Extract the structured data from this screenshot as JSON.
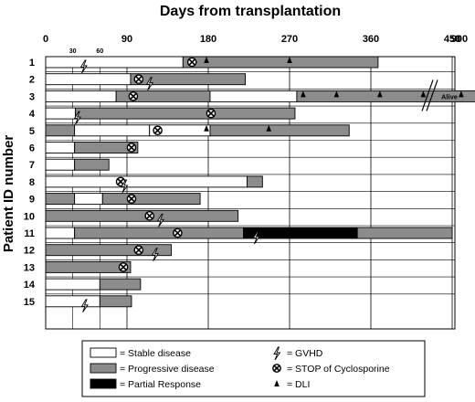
{
  "chart_data": {
    "type": "bar",
    "title": "Days from transplantation",
    "ylabel": "Patient ID number",
    "x_ticks_major": [
      {
        "value": 0,
        "label": "0"
      },
      {
        "value": 90,
        "label": "90"
      },
      {
        "value": 180,
        "label": "180"
      },
      {
        "value": 270,
        "label": "270"
      },
      {
        "value": 360,
        "label": "360"
      },
      {
        "value": 450,
        "label": "450"
      },
      {
        "value": 900,
        "label": "900"
      }
    ],
    "x_ticks_minor": [
      {
        "value": 30,
        "label": "30"
      },
      {
        "value": 60,
        "label": "60"
      }
    ],
    "axis_break": {
      "after_value": 540,
      "note": "Alive"
    },
    "grid": true,
    "patients": [
      {
        "id": "1",
        "segments": [
          {
            "s": 0,
            "e": 152,
            "state": "stable"
          },
          {
            "s": 152,
            "e": 368,
            "state": "progressive"
          }
        ],
        "gvhd": [
          42
        ],
        "stop": [
          162
        ],
        "dli": [
          178,
          270
        ]
      },
      {
        "id": "2",
        "segments": [
          {
            "s": 0,
            "e": 94,
            "state": "stable"
          },
          {
            "s": 94,
            "e": 221,
            "state": "progressive"
          }
        ],
        "gvhd": [
          115
        ],
        "stop": [
          103
        ],
        "dli": []
      },
      {
        "id": "3",
        "segments": [
          {
            "s": 0,
            "e": 78,
            "state": "stable"
          },
          {
            "s": 78,
            "e": 182,
            "state": "progressive"
          },
          {
            "s": 182,
            "e": 278,
            "state": "stable"
          },
          {
            "s": 278,
            "e": 540,
            "state": "progressive"
          }
        ],
        "gvhd": [],
        "stop": [
          97
        ],
        "dli": [
          285,
          322,
          370,
          418,
          460
        ],
        "alive": true
      },
      {
        "id": "4",
        "segments": [
          {
            "s": 0,
            "e": 33,
            "state": "stable"
          },
          {
            "s": 33,
            "e": 276,
            "state": "progressive"
          }
        ],
        "gvhd": [
          35
        ],
        "stop": [
          183
        ],
        "dli": []
      },
      {
        "id": "5",
        "segments": [
          {
            "s": 0,
            "e": 32,
            "state": "progressive"
          },
          {
            "s": 32,
            "e": 115,
            "state": "stable"
          },
          {
            "s": 115,
            "e": 182,
            "state": "stable"
          },
          {
            "s": 182,
            "e": 336,
            "state": "progressive"
          }
        ],
        "gvhd": [],
        "stop": [
          124
        ],
        "dli": [
          178,
          247
        ]
      },
      {
        "id": "6",
        "segments": [
          {
            "s": 0,
            "e": 32,
            "state": "stable"
          },
          {
            "s": 32,
            "e": 102,
            "state": "progressive"
          }
        ],
        "gvhd": [],
        "stop": [
          95
        ],
        "dli": []
      },
      {
        "id": "7",
        "segments": [
          {
            "s": 0,
            "e": 32,
            "state": "stable"
          },
          {
            "s": 32,
            "e": 70,
            "state": "progressive"
          }
        ],
        "gvhd": [],
        "stop": [],
        "dli": []
      },
      {
        "id": "8",
        "segments": [
          {
            "s": 0,
            "e": 223,
            "state": "stable"
          },
          {
            "s": 223,
            "e": 240,
            "state": "progressive"
          }
        ],
        "gvhd": [
          87
        ],
        "stop": [
          83
        ],
        "dli": []
      },
      {
        "id": "9",
        "segments": [
          {
            "s": 0,
            "e": 32,
            "state": "progressive"
          },
          {
            "s": 32,
            "e": 63,
            "state": "stable"
          },
          {
            "s": 63,
            "e": 171,
            "state": "progressive"
          }
        ],
        "gvhd": [],
        "stop": [
          95
        ],
        "dli": []
      },
      {
        "id": "10",
        "segments": [
          {
            "s": 0,
            "e": 213,
            "state": "progressive"
          }
        ],
        "gvhd": [
          127
        ],
        "stop": [
          115
        ],
        "dli": []
      },
      {
        "id": "11",
        "segments": [
          {
            "s": 0,
            "e": 32,
            "state": "stable"
          },
          {
            "s": 32,
            "e": 219,
            "state": "progressive"
          },
          {
            "s": 219,
            "e": 345,
            "state": "partial"
          },
          {
            "s": 345,
            "e": 450,
            "state": "progressive"
          }
        ],
        "gvhd": [
          233
        ],
        "stop": [
          146
        ],
        "dli": []
      },
      {
        "id": "12",
        "segments": [
          {
            "s": 0,
            "e": 139,
            "state": "progressive"
          }
        ],
        "gvhd": [
          121
        ],
        "stop": [
          103
        ],
        "dli": []
      },
      {
        "id": "13",
        "segments": [
          {
            "s": 0,
            "e": 94,
            "state": "progressive"
          }
        ],
        "gvhd": [],
        "stop": [
          86
        ],
        "dli": []
      },
      {
        "id": "14",
        "segments": [
          {
            "s": 0,
            "e": 60,
            "state": "stable"
          },
          {
            "s": 60,
            "e": 105,
            "state": "progressive"
          }
        ],
        "gvhd": [],
        "stop": [],
        "dli": []
      },
      {
        "id": "15",
        "segments": [
          {
            "s": 0,
            "e": 60,
            "state": "stable"
          },
          {
            "s": 60,
            "e": 95,
            "state": "progressive"
          }
        ],
        "gvhd": [
          43
        ],
        "stop": [],
        "dli": []
      }
    ],
    "legend": [
      {
        "key": "stable",
        "label": "= Stable disease"
      },
      {
        "key": "progressive",
        "label": "= Progressive disease"
      },
      {
        "key": "partial",
        "label": "= Partial Response"
      },
      {
        "key": "gvhd",
        "label": "= GVHD"
      },
      {
        "key": "stop",
        "label": "= STOP of  Cyclosporine"
      },
      {
        "key": "dli",
        "label": "= DLI"
      }
    ],
    "colors": {
      "stable": "#ffffff",
      "progressive": "#8c8c8c",
      "partial": "#000000",
      "outline": "#000000"
    }
  }
}
